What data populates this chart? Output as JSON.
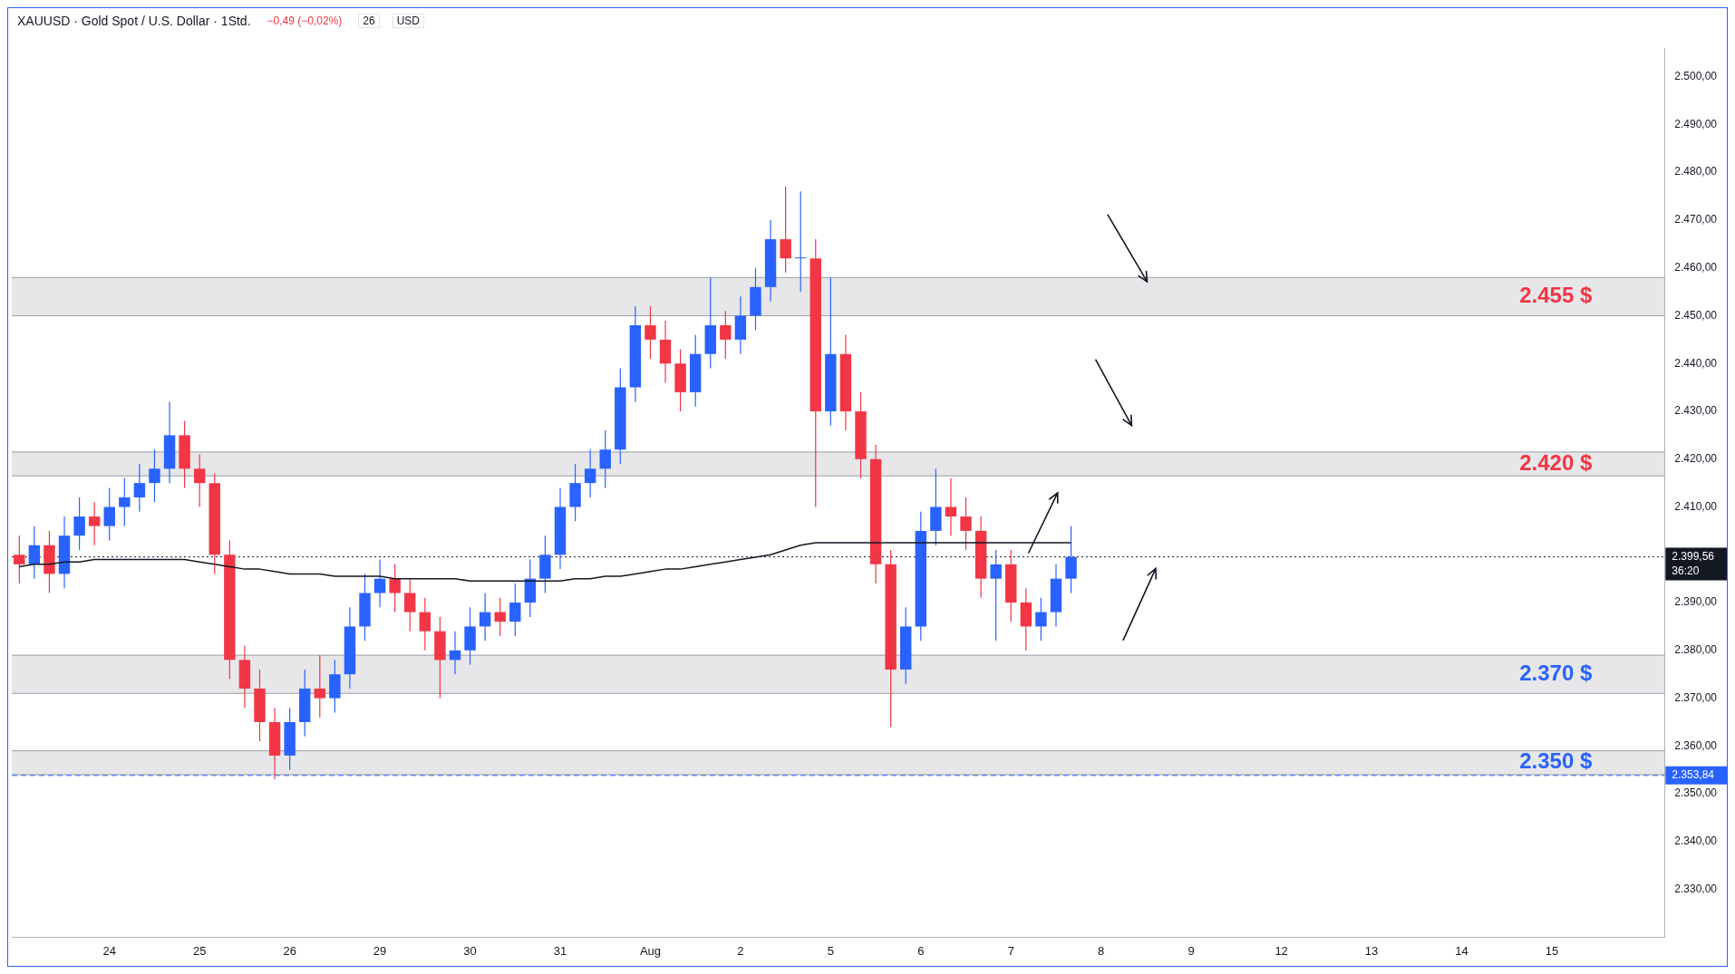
{
  "chart_data": {
    "type": "candlestick",
    "title": "XAUUSD · Gold Spot / U.S. Dollar · 1Std.",
    "annotations": [
      "−0,49 (−0,02%)",
      "26",
      "USD",
      "36:20"
    ],
    "categories": [
      null,
      null,
      null,
      null,
      null,
      null,
      "24",
      null,
      null,
      null,
      null,
      null,
      "25",
      null,
      null,
      null,
      null,
      null,
      "26",
      null,
      null,
      null,
      null,
      null,
      "29",
      null,
      null,
      null,
      null,
      null,
      "30",
      null,
      null,
      null,
      null,
      null,
      "31",
      null,
      null,
      null,
      null,
      null,
      "Aug",
      null,
      null,
      null,
      null,
      null,
      "2",
      null,
      null,
      null,
      null,
      null,
      "5",
      null,
      null,
      null,
      null,
      null,
      "6",
      null,
      null,
      null,
      null,
      null,
      "7",
      null,
      null,
      null,
      null,
      null,
      "8",
      null,
      null,
      null,
      null,
      null,
      "9",
      null,
      null,
      null,
      null,
      null,
      "12",
      null,
      null,
      null,
      null,
      null,
      "13",
      null,
      null,
      null,
      null,
      null,
      "14",
      null,
      null,
      null,
      null,
      null,
      "15",
      null,
      null,
      null,
      null,
      null,
      null,
      null
    ],
    "series": [
      {
        "type": "candlestick",
        "colors": [
          "#f23645",
          "#2962ff",
          "#f23645",
          "#2962ff",
          "#2962ff",
          "#f23645",
          "#2962ff",
          "#2962ff",
          "#2962ff",
          "#2962ff",
          "#2962ff",
          "#f23645",
          "#f23645",
          "#f23645",
          "#f23645",
          "#f23645",
          "#f23645",
          "#f23645",
          "#2962ff",
          "#2962ff",
          "#f23645",
          "#2962ff",
          "#2962ff",
          "#2962ff",
          "#2962ff",
          "#f23645",
          "#f23645",
          "#f23645",
          "#f23645",
          "#2962ff",
          "#2962ff",
          "#2962ff",
          "#f23645",
          "#2962ff",
          "#2962ff",
          "#2962ff",
          "#2962ff",
          "#2962ff",
          "#2962ff",
          "#2962ff",
          "#2962ff",
          "#2962ff",
          "#f23645",
          "#f23645",
          "#f23645",
          "#2962ff",
          "#2962ff",
          "#f23645",
          "#2962ff",
          "#2962ff",
          "#2962ff",
          "#f23645",
          "#2962ff",
          "#f23645",
          "#2962ff",
          "#f23645",
          "#f23645",
          "#f23645",
          "#f23645",
          "#2962ff",
          "#2962ff",
          "#2962ff",
          "#f23645",
          "#f23645",
          "#f23645",
          "#2962ff",
          "#f23645",
          "#f23645",
          "#2962ff",
          "#2962ff",
          "#2962ff",
          null,
          null,
          null,
          null,
          null,
          null,
          null,
          null,
          null,
          null,
          null,
          null,
          null,
          null,
          null,
          null,
          null,
          null,
          null,
          null,
          null,
          null,
          null,
          null,
          null,
          null,
          null,
          null,
          null,
          null,
          null,
          null,
          null,
          null,
          null,
          null,
          null,
          null,
          null
        ],
        "ohlc": [
          [
            2400,
            2404,
            2394,
            2398
          ],
          [
            2398,
            2406,
            2395,
            2402
          ],
          [
            2402,
            2405,
            2392,
            2396
          ],
          [
            2396,
            2408,
            2393,
            2404
          ],
          [
            2404,
            2412,
            2401,
            2408
          ],
          [
            2408,
            2411,
            2402,
            2406
          ],
          [
            2406,
            2414,
            2403,
            2410
          ],
          [
            2410,
            2416,
            2406,
            2412
          ],
          [
            2412,
            2419,
            2409,
            2415
          ],
          [
            2415,
            2422,
            2411,
            2418
          ],
          [
            2418,
            2432,
            2415,
            2425
          ],
          [
            2425,
            2428,
            2414,
            2418
          ],
          [
            2418,
            2421,
            2410,
            2415
          ],
          [
            2415,
            2417,
            2396,
            2400
          ],
          [
            2400,
            2403,
            2374,
            2378
          ],
          [
            2378,
            2381,
            2368,
            2372
          ],
          [
            2372,
            2376,
            2361,
            2365
          ],
          [
            2365,
            2368,
            2353,
            2358
          ],
          [
            2358,
            2368,
            2355,
            2365
          ],
          [
            2365,
            2376,
            2362,
            2372
          ],
          [
            2372,
            2379,
            2366,
            2370
          ],
          [
            2370,
            2378,
            2367,
            2375
          ],
          [
            2375,
            2389,
            2372,
            2385
          ],
          [
            2385,
            2396,
            2382,
            2392
          ],
          [
            2392,
            2399,
            2389,
            2395
          ],
          [
            2395,
            2398,
            2388,
            2392
          ],
          [
            2392,
            2395,
            2384,
            2388
          ],
          [
            2388,
            2391,
            2380,
            2384
          ],
          [
            2384,
            2387,
            2370,
            2378
          ],
          [
            2378,
            2384,
            2375,
            2380
          ],
          [
            2380,
            2389,
            2377,
            2385
          ],
          [
            2385,
            2392,
            2382,
            2388
          ],
          [
            2388,
            2391,
            2383,
            2386
          ],
          [
            2386,
            2394,
            2383,
            2390
          ],
          [
            2390,
            2399,
            2387,
            2395
          ],
          [
            2395,
            2404,
            2392,
            2400
          ],
          [
            2400,
            2414,
            2397,
            2410
          ],
          [
            2410,
            2419,
            2407,
            2415
          ],
          [
            2415,
            2422,
            2412,
            2418
          ],
          [
            2418,
            2426,
            2414,
            2422
          ],
          [
            2422,
            2439,
            2419,
            2435
          ],
          [
            2435,
            2452,
            2432,
            2448
          ],
          [
            2448,
            2452,
            2441,
            2445
          ],
          [
            2445,
            2449,
            2436,
            2440
          ],
          [
            2440,
            2443,
            2430,
            2434
          ],
          [
            2434,
            2446,
            2431,
            2442
          ],
          [
            2442,
            2458,
            2439,
            2448
          ],
          [
            2448,
            2451,
            2441,
            2445
          ],
          [
            2445,
            2454,
            2442,
            2450
          ],
          [
            2450,
            2460,
            2447,
            2456
          ],
          [
            2456,
            2470,
            2453,
            2466
          ],
          [
            2466,
            2477,
            2459,
            2462
          ],
          [
            2462,
            2476,
            2455,
            2462
          ],
          [
            2462,
            2466,
            2410,
            2430
          ],
          [
            2430,
            2458,
            2427,
            2442
          ],
          [
            2442,
            2446,
            2426,
            2430
          ],
          [
            2430,
            2434,
            2416,
            2420
          ],
          [
            2420,
            2423,
            2394,
            2398
          ],
          [
            2398,
            2401,
            2364,
            2376
          ],
          [
            2376,
            2389,
            2373,
            2385
          ],
          [
            2385,
            2409,
            2382,
            2405
          ],
          [
            2405,
            2418,
            2402,
            2410
          ],
          [
            2410,
            2416,
            2404,
            2408
          ],
          [
            2408,
            2412,
            2401,
            2405
          ],
          [
            2405,
            2408,
            2391,
            2395
          ],
          [
            2395,
            2401,
            2382,
            2398
          ],
          [
            2398,
            2401,
            2386,
            2390
          ],
          [
            2390,
            2393,
            2380,
            2385
          ],
          [
            2385,
            2391,
            2382,
            2388
          ],
          [
            2388,
            2398,
            2385,
            2395
          ],
          [
            2395,
            2406,
            2392,
            2399.56
          ],
          null,
          null,
          null,
          null,
          null,
          null,
          null,
          null,
          null,
          null,
          null,
          null,
          null,
          null,
          null,
          null,
          null,
          null,
          null,
          null,
          null,
          null,
          null,
          null,
          null,
          null,
          null,
          null,
          null,
          null,
          null,
          null,
          null,
          null,
          null,
          null,
          null,
          null,
          null
        ]
      },
      {
        "type": "line",
        "color": "#131722",
        "values": [
          2397.5,
          2398,
          2398,
          2398.5,
          2398.5,
          2399,
          2399,
          2399,
          2399,
          2399,
          2399,
          2399,
          2398.5,
          2398,
          2397.5,
          2397,
          2397,
          2396.5,
          2396,
          2396,
          2396,
          2395.5,
          2395.5,
          2395.5,
          2395.5,
          2395,
          2395,
          2395,
          2395,
          2395,
          2394.5,
          2394.5,
          2394.5,
          2394.5,
          2394.5,
          2394.5,
          2394.5,
          2395,
          2395,
          2395.5,
          2395.5,
          2396,
          2396.5,
          2397,
          2397,
          2397.5,
          2398,
          2398.5,
          2399,
          2399.5,
          2400,
          2401,
          2402,
          2402.5,
          2402.5,
          2402.5,
          2402.5,
          2402.5,
          2402.5,
          2402.5,
          2402.5,
          2402.5,
          2402.5,
          2402.5,
          2402.5,
          2402.5,
          2402.5,
          2402.5,
          2402.5,
          2402.5,
          2402.5,
          null,
          null,
          null,
          null,
          null,
          null,
          null,
          null,
          null,
          null,
          null,
          null,
          null,
          null,
          null,
          null,
          null,
          null,
          null,
          null,
          null,
          null,
          null,
          null,
          null,
          null,
          null,
          null,
          null,
          null,
          null,
          null,
          null,
          null,
          null,
          null,
          null,
          null,
          null
        ]
      }
    ],
    "ylim": [
      2320,
      2506
    ],
    "yticks": [
      {
        "value": 2330,
        "label": "2.330,00"
      },
      {
        "value": 2340,
        "label": "2.340,00"
      },
      {
        "value": 2350,
        "label": "2.350,00"
      },
      {
        "value": 2360,
        "label": "2.360,00"
      },
      {
        "value": 2370,
        "label": "2.370,00"
      },
      {
        "value": 2380,
        "label": "2.380,00"
      },
      {
        "value": 2390,
        "label": "2.390,00"
      },
      {
        "value": 2410,
        "label": "2.410,00"
      },
      {
        "value": 2420,
        "label": "2.420,00"
      },
      {
        "value": 2430,
        "label": "2.430,00"
      },
      {
        "value": 2440,
        "label": "2.440,00"
      },
      {
        "value": 2450,
        "label": "2.450,00"
      },
      {
        "value": 2460,
        "label": "2.460,00"
      },
      {
        "value": 2470,
        "label": "2.470,00"
      },
      {
        "value": 2480,
        "label": "2.480,00"
      },
      {
        "value": 2490,
        "label": "2.490,00"
      },
      {
        "value": 2500,
        "label": "2.500,00"
      }
    ],
    "bands": [
      {
        "axis": "y",
        "from": 2450,
        "to": 2458,
        "label": "2.455 $",
        "color": "#787b86"
      },
      {
        "axis": "y",
        "from": 2416.5,
        "to": 2421.5,
        "label": "2.420 $",
        "color": "#787b86"
      },
      {
        "axis": "y",
        "from": 2371,
        "to": 2379,
        "label": "2.370 $",
        "color": "#787b86"
      },
      {
        "axis": "y",
        "from": 2354,
        "to": 2359,
        "label": "2.350 $",
        "color": "#787b86"
      }
    ],
    "ref_lines": [
      {
        "axis": "y",
        "value": 2399.56,
        "label": "2.399,56",
        "color": "#131722",
        "line_style": "dotted"
      },
      {
        "axis": "y",
        "value": 2353.84,
        "label": "2.353,84",
        "color": "#2962ff",
        "line_style": "dashed"
      }
    ]
  }
}
